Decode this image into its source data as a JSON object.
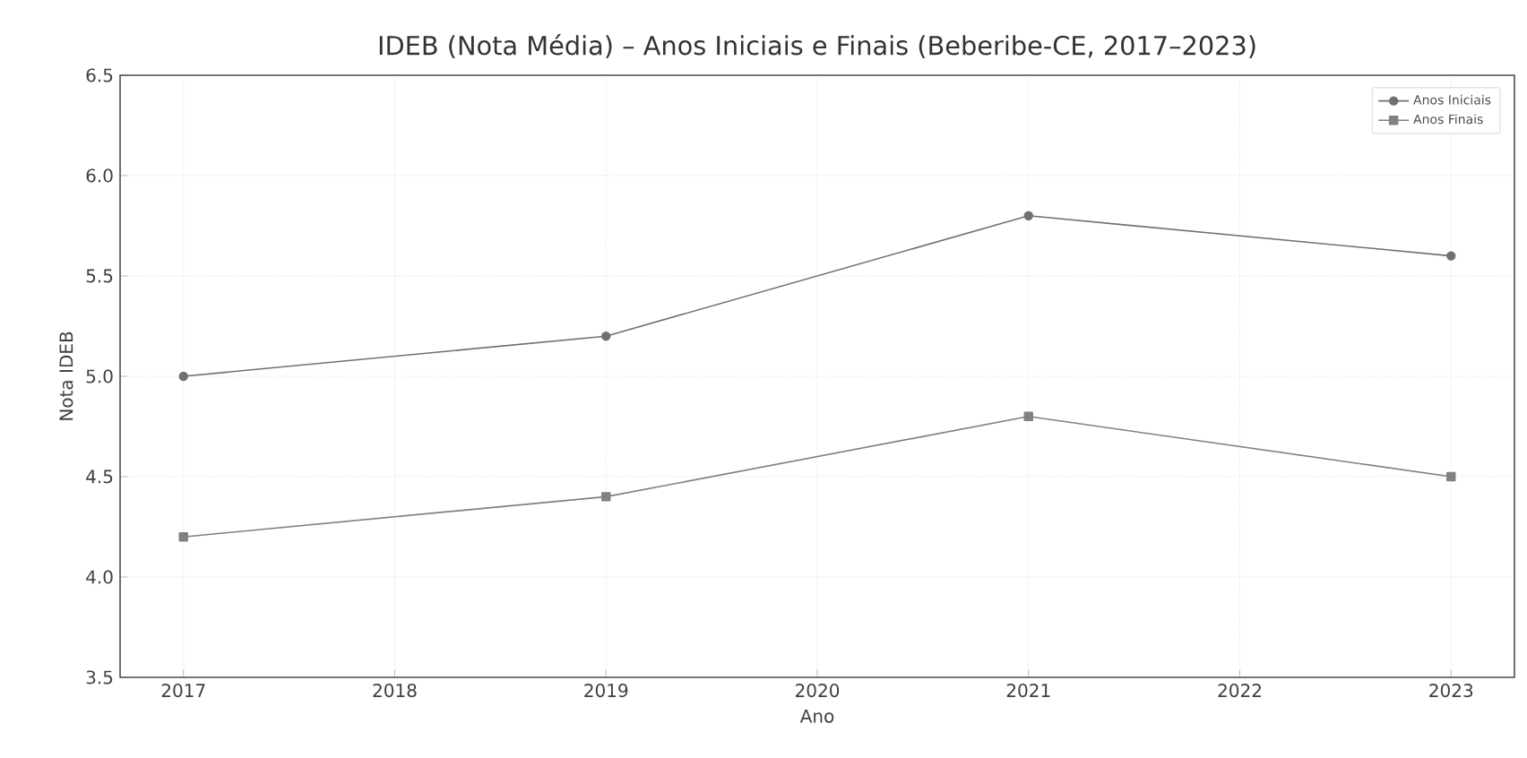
{
  "chart_data": {
    "type": "line",
    "title": "IDEB (Nota Média) – Anos Iniciais e Finais (Beberibe-CE, 2017–2023)",
    "xlabel": "Ano",
    "ylabel": "Nota IDEB",
    "x": [
      2017,
      2019,
      2021,
      2023
    ],
    "series": [
      {
        "name": "Anos Iniciais",
        "color": "#707070",
        "marker": "circle",
        "values": [
          5.0,
          5.2,
          5.8,
          5.6
        ]
      },
      {
        "name": "Anos Finais",
        "color": "#808080",
        "marker": "square",
        "values": [
          4.2,
          4.4,
          4.8,
          4.5
        ]
      }
    ],
    "xlim": [
      2016.7,
      2023.3
    ],
    "xticks": [
      2017,
      2018,
      2019,
      2020,
      2021,
      2022,
      2023
    ],
    "ylim": [
      3.5,
      6.5
    ],
    "yticks": [
      3.5,
      {
        "value": 4,
        "label": "4.0"
      },
      4.5,
      {
        "value": 5,
        "label": "5.0"
      },
      5.5,
      {
        "value": 6,
        "label": "6.0"
      },
      6.5
    ],
    "grid": true,
    "legend": "top right",
    "line_style": "solid"
  }
}
